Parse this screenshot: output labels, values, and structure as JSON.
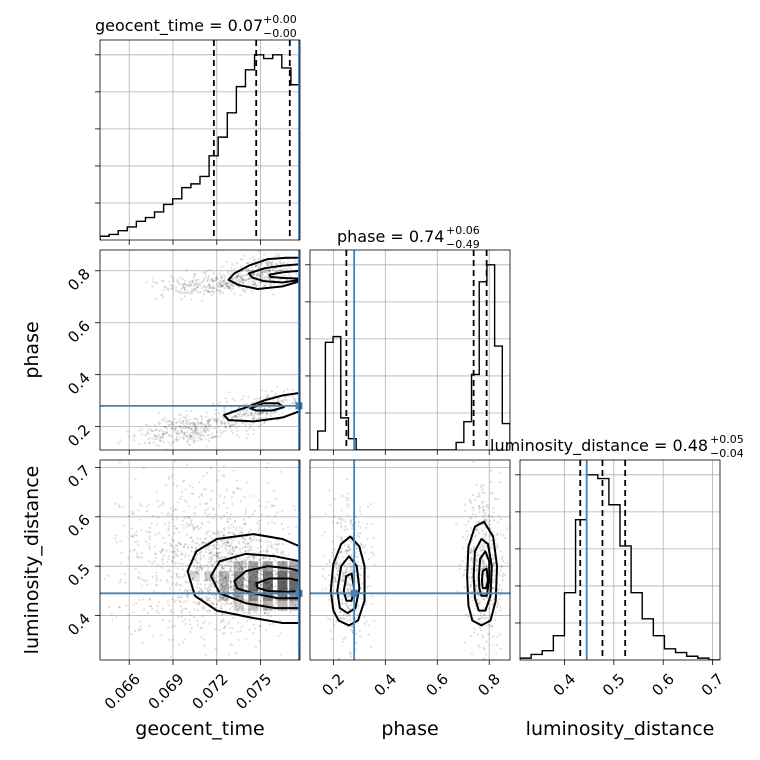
{
  "chart_data": {
    "type": "scatter",
    "variant": "corner-plot",
    "parameters": [
      "geocent_time",
      "phase",
      "luminosity_distance"
    ],
    "ranges": {
      "geocent_time": [
        0.064,
        0.0777
      ],
      "phase": [
        0.11,
        0.88
      ],
      "luminosity_distance": [
        0.31,
        0.715
      ]
    },
    "ticks": {
      "geocent_time": [
        "0.066",
        "0.069",
        "0.072",
        "0.075"
      ],
      "phase": [
        "0.2",
        "0.4",
        "0.6",
        "0.8"
      ],
      "luminosity_distance": [
        "0.4",
        "0.5",
        "0.6",
        "0.7"
      ]
    },
    "tick_values": {
      "geocent_time": [
        0.066,
        0.069,
        0.072,
        0.075
      ],
      "phase": [
        0.2,
        0.4,
        0.6,
        0.8
      ],
      "luminosity_distance": [
        0.4,
        0.5,
        0.6,
        0.7
      ]
    },
    "titles": {
      "geocent_time": {
        "base": "geocent_time = 0.07",
        "sup": "+0.00",
        "sub": "−0.00"
      },
      "phase": {
        "base": "phase = 0.74",
        "sup": "+0.06",
        "sub": "−0.49"
      },
      "luminosity_distance": {
        "base": "luminosity_distance = 0.48",
        "sup": "+0.05",
        "sub": "−0.04"
      }
    },
    "axis_labels": {
      "geocent_time": "geocent_time",
      "phase": "phase",
      "luminosity_distance": "luminosity_distance"
    },
    "truths": {
      "geocent_time": 0.0777,
      "phase": 0.28,
      "luminosity_distance": 0.445
    },
    "quantiles": {
      "geocent_time": [
        0.0718,
        0.0747,
        0.077
      ],
      "phase": [
        0.25,
        0.74,
        0.79
      ],
      "luminosity_distance": [
        0.432,
        0.477,
        0.523
      ]
    },
    "histograms": {
      "geocent_time": [
        2,
        3,
        5,
        7,
        10,
        12,
        15,
        19,
        22,
        28,
        30,
        34,
        45,
        55,
        68,
        82,
        91,
        99,
        97,
        99,
        92,
        83
      ],
      "phase": [
        0,
        10,
        57,
        60,
        17,
        6,
        0,
        0,
        0,
        0,
        0,
        0,
        0,
        0,
        0,
        0,
        0,
        0,
        0,
        4,
        15,
        40,
        89,
        98,
        55,
        14
      ],
      "luminosity_distance": [
        1,
        3,
        5,
        13,
        36,
        75,
        99,
        97,
        83,
        61,
        36,
        22,
        13,
        6,
        4,
        2,
        1,
        0
      ]
    },
    "contours": {
      "phase_vs_geocent_time": [
        [
          [
            0.0732,
            0.79
          ],
          [
            0.0742,
            0.82
          ],
          [
            0.0755,
            0.845
          ],
          [
            0.0768,
            0.85
          ],
          [
            0.0777,
            0.85
          ],
          [
            0.0777,
            0.76
          ],
          [
            0.0765,
            0.74
          ],
          [
            0.0748,
            0.73
          ],
          [
            0.0735,
            0.745
          ],
          [
            0.0728,
            0.765
          ]
        ],
        [
          [
            0.0742,
            0.79
          ],
          [
            0.0753,
            0.81
          ],
          [
            0.0765,
            0.82
          ],
          [
            0.0777,
            0.825
          ],
          [
            0.0777,
            0.765
          ],
          [
            0.0765,
            0.755
          ],
          [
            0.0752,
            0.76
          ],
          [
            0.0744,
            0.775
          ]
        ],
        [
          [
            0.0756,
            0.785
          ],
          [
            0.0766,
            0.795
          ],
          [
            0.0777,
            0.8
          ],
          [
            0.0777,
            0.77
          ],
          [
            0.0766,
            0.772
          ],
          [
            0.0757,
            0.776
          ]
        ],
        [
          [
            0.0725,
            0.245
          ],
          [
            0.0738,
            0.27
          ],
          [
            0.0752,
            0.3
          ],
          [
            0.0765,
            0.32
          ],
          [
            0.0777,
            0.33
          ],
          [
            0.0777,
            0.26
          ],
          [
            0.0765,
            0.235
          ],
          [
            0.0745,
            0.22
          ],
          [
            0.0728,
            0.225
          ]
        ],
        [
          [
            0.0743,
            0.27
          ],
          [
            0.0752,
            0.29
          ],
          [
            0.0762,
            0.29
          ],
          [
            0.0766,
            0.275
          ],
          [
            0.0758,
            0.262
          ],
          [
            0.0747,
            0.262
          ]
        ]
      ],
      "luminosity_distance_vs_geocent_time": [
        [
          [
            0.07,
            0.49
          ],
          [
            0.0706,
            0.53
          ],
          [
            0.072,
            0.555
          ],
          [
            0.0745,
            0.565
          ],
          [
            0.0765,
            0.555
          ],
          [
            0.0777,
            0.54
          ],
          [
            0.0777,
            0.385
          ],
          [
            0.0765,
            0.385
          ],
          [
            0.0745,
            0.395
          ],
          [
            0.072,
            0.41
          ],
          [
            0.0705,
            0.44
          ]
        ],
        [
          [
            0.0716,
            0.48
          ],
          [
            0.0722,
            0.51
          ],
          [
            0.074,
            0.525
          ],
          [
            0.076,
            0.52
          ],
          [
            0.0777,
            0.51
          ],
          [
            0.0777,
            0.415
          ],
          [
            0.076,
            0.415
          ],
          [
            0.074,
            0.425
          ],
          [
            0.0722,
            0.445
          ]
        ],
        [
          [
            0.0732,
            0.47
          ],
          [
            0.074,
            0.49
          ],
          [
            0.0755,
            0.5
          ],
          [
            0.077,
            0.495
          ],
          [
            0.0777,
            0.49
          ],
          [
            0.0777,
            0.435
          ],
          [
            0.0762,
            0.435
          ],
          [
            0.0745,
            0.445
          ],
          [
            0.0734,
            0.455
          ]
        ],
        [
          [
            0.0747,
            0.465
          ],
          [
            0.0756,
            0.475
          ],
          [
            0.077,
            0.475
          ],
          [
            0.0777,
            0.47
          ],
          [
            0.0777,
            0.45
          ],
          [
            0.0768,
            0.448
          ],
          [
            0.0755,
            0.45
          ],
          [
            0.0748,
            0.456
          ]
        ]
      ],
      "luminosity_distance_vs_phase": [
        [
          [
            0.19,
            0.45
          ],
          [
            0.2,
            0.505
          ],
          [
            0.23,
            0.545
          ],
          [
            0.265,
            0.56
          ],
          [
            0.3,
            0.54
          ],
          [
            0.32,
            0.5
          ],
          [
            0.32,
            0.43
          ],
          [
            0.295,
            0.39
          ],
          [
            0.26,
            0.38
          ],
          [
            0.22,
            0.39
          ],
          [
            0.2,
            0.41
          ]
        ],
        [
          [
            0.215,
            0.45
          ],
          [
            0.23,
            0.5
          ],
          [
            0.26,
            0.52
          ],
          [
            0.29,
            0.5
          ],
          [
            0.3,
            0.455
          ],
          [
            0.285,
            0.415
          ],
          [
            0.255,
            0.405
          ],
          [
            0.225,
            0.415
          ]
        ],
        [
          [
            0.24,
            0.45
          ],
          [
            0.25,
            0.48
          ],
          [
            0.27,
            0.485
          ],
          [
            0.28,
            0.455
          ],
          [
            0.27,
            0.43
          ],
          [
            0.25,
            0.43
          ]
        ],
        [
          [
            0.715,
            0.48
          ],
          [
            0.72,
            0.54
          ],
          [
            0.745,
            0.58
          ],
          [
            0.78,
            0.59
          ],
          [
            0.815,
            0.56
          ],
          [
            0.83,
            0.5
          ],
          [
            0.825,
            0.43
          ],
          [
            0.805,
            0.39
          ],
          [
            0.77,
            0.38
          ],
          [
            0.735,
            0.39
          ],
          [
            0.72,
            0.42
          ]
        ],
        [
          [
            0.74,
            0.48
          ],
          [
            0.745,
            0.53
          ],
          [
            0.77,
            0.555
          ],
          [
            0.795,
            0.545
          ],
          [
            0.81,
            0.5
          ],
          [
            0.805,
            0.44
          ],
          [
            0.785,
            0.41
          ],
          [
            0.76,
            0.41
          ],
          [
            0.745,
            0.435
          ]
        ],
        [
          [
            0.76,
            0.48
          ],
          [
            0.765,
            0.515
          ],
          [
            0.785,
            0.53
          ],
          [
            0.8,
            0.51
          ],
          [
            0.8,
            0.47
          ],
          [
            0.79,
            0.44
          ],
          [
            0.77,
            0.44
          ],
          [
            0.762,
            0.455
          ]
        ],
        [
          [
            0.772,
            0.47
          ],
          [
            0.775,
            0.49
          ],
          [
            0.79,
            0.495
          ],
          [
            0.795,
            0.47
          ],
          [
            0.787,
            0.455
          ],
          [
            0.775,
            0.456
          ]
        ]
      ]
    },
    "density_2d": {
      "luminosity_distance_vs_geocent_time": [
        {
          "x": 0.0705,
          "y": 0.48,
          "v": 0.15
        },
        {
          "x": 0.0715,
          "y": 0.48,
          "v": 0.25
        },
        {
          "x": 0.0725,
          "y": 0.48,
          "v": 0.4
        },
        {
          "x": 0.0735,
          "y": 0.48,
          "v": 0.55
        },
        {
          "x": 0.0745,
          "y": 0.48,
          "v": 0.7
        },
        {
          "x": 0.0755,
          "y": 0.48,
          "v": 0.75
        },
        {
          "x": 0.0765,
          "y": 0.48,
          "v": 0.8
        },
        {
          "x": 0.0773,
          "y": 0.48,
          "v": 0.75
        },
        {
          "x": 0.0725,
          "y": 0.46,
          "v": 0.35
        },
        {
          "x": 0.0735,
          "y": 0.46,
          "v": 0.6
        },
        {
          "x": 0.0745,
          "y": 0.46,
          "v": 0.8
        },
        {
          "x": 0.0755,
          "y": 0.46,
          "v": 0.85
        },
        {
          "x": 0.0765,
          "y": 0.46,
          "v": 0.9
        },
        {
          "x": 0.0773,
          "y": 0.46,
          "v": 0.85
        },
        {
          "x": 0.0725,
          "y": 0.44,
          "v": 0.3
        },
        {
          "x": 0.0735,
          "y": 0.44,
          "v": 0.5
        },
        {
          "x": 0.0745,
          "y": 0.44,
          "v": 0.65
        },
        {
          "x": 0.0755,
          "y": 0.44,
          "v": 0.7
        },
        {
          "x": 0.0765,
          "y": 0.44,
          "v": 0.7
        },
        {
          "x": 0.0773,
          "y": 0.44,
          "v": 0.65
        },
        {
          "x": 0.0735,
          "y": 0.5,
          "v": 0.35
        },
        {
          "x": 0.0745,
          "y": 0.5,
          "v": 0.45
        },
        {
          "x": 0.0755,
          "y": 0.5,
          "v": 0.5
        },
        {
          "x": 0.0765,
          "y": 0.5,
          "v": 0.5
        },
        {
          "x": 0.0773,
          "y": 0.5,
          "v": 0.45
        },
        {
          "x": 0.0735,
          "y": 0.42,
          "v": 0.25
        },
        {
          "x": 0.0745,
          "y": 0.42,
          "v": 0.35
        },
        {
          "x": 0.0755,
          "y": 0.42,
          "v": 0.4
        },
        {
          "x": 0.0765,
          "y": 0.42,
          "v": 0.4
        },
        {
          "x": 0.0773,
          "y": 0.42,
          "v": 0.35
        }
      ]
    },
    "scatter_clouds": {
      "phase_vs_geocent_time": [
        {
          "x": [
            0.0672,
            0.0765
          ],
          "y": [
            0.7,
            0.8
          ],
          "n": 300
        },
        {
          "x": [
            0.0725,
            0.0777
          ],
          "y": [
            0.74,
            0.86
          ],
          "n": 250
        },
        {
          "x": [
            0.0662,
            0.0745
          ],
          "y": [
            0.13,
            0.25
          ],
          "n": 350
        },
        {
          "x": [
            0.0718,
            0.0777
          ],
          "y": [
            0.2,
            0.33
          ],
          "n": 250
        }
      ],
      "luminosity_distance_vs_geocent_time": [
        {
          "x": [
            0.065,
            0.0777
          ],
          "y": [
            0.33,
            0.69
          ],
          "n": 900
        },
        {
          "x": [
            0.07,
            0.0777
          ],
          "y": [
            0.38,
            0.58
          ],
          "n": 600
        }
      ],
      "luminosity_distance_vs_phase": [
        {
          "x": [
            0.17,
            0.35
          ],
          "y": [
            0.34,
            0.63
          ],
          "n": 400
        },
        {
          "x": [
            0.7,
            0.86
          ],
          "y": [
            0.34,
            0.68
          ],
          "n": 500
        }
      ]
    }
  }
}
